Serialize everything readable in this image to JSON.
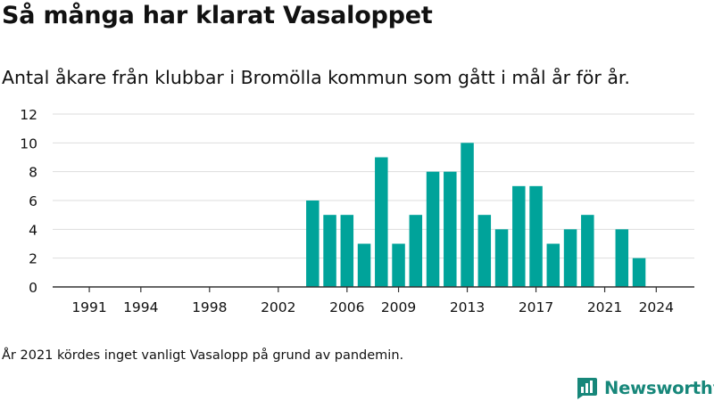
{
  "title": "Så många har klarat Vasaloppet",
  "subtitle": "Antal åkare från klubbar i Bromölla kommun som gått i mål år för år.",
  "footnote": "År 2021 kördes inget vanligt Vasalopp på grund av pandemin.",
  "brand": {
    "name": "Newsworthy",
    "color": "#17877a",
    "icon": "newsworthy-logo-icon"
  },
  "colors": {
    "bar": "#00a39a",
    "grid": "#dddddd",
    "axis": "#333333",
    "text": "#111111"
  },
  "chart_data": {
    "type": "bar",
    "categories": [
      1990,
      1991,
      1992,
      1993,
      1994,
      1995,
      1996,
      1997,
      1998,
      1999,
      2000,
      2001,
      2002,
      2003,
      2004,
      2005,
      2006,
      2007,
      2008,
      2009,
      2010,
      2011,
      2012,
      2013,
      2014,
      2015,
      2016,
      2017,
      2018,
      2019,
      2020,
      2021,
      2022,
      2023,
      2024,
      2025
    ],
    "values": [
      0,
      0,
      0,
      0,
      0,
      0,
      0,
      0,
      0,
      0,
      0,
      0,
      0,
      0,
      6,
      5,
      5,
      3,
      9,
      3,
      5,
      8,
      8,
      10,
      5,
      4,
      7,
      7,
      3,
      4,
      5,
      0,
      4,
      2,
      0,
      0
    ],
    "x_ticks": [
      1991,
      1994,
      1998,
      2002,
      2006,
      2009,
      2013,
      2017,
      2021,
      2024
    ],
    "y_ticks": [
      0,
      2,
      4,
      6,
      8,
      10,
      12
    ],
    "ylim": [
      0,
      12
    ],
    "grid": true,
    "legend": "none"
  }
}
